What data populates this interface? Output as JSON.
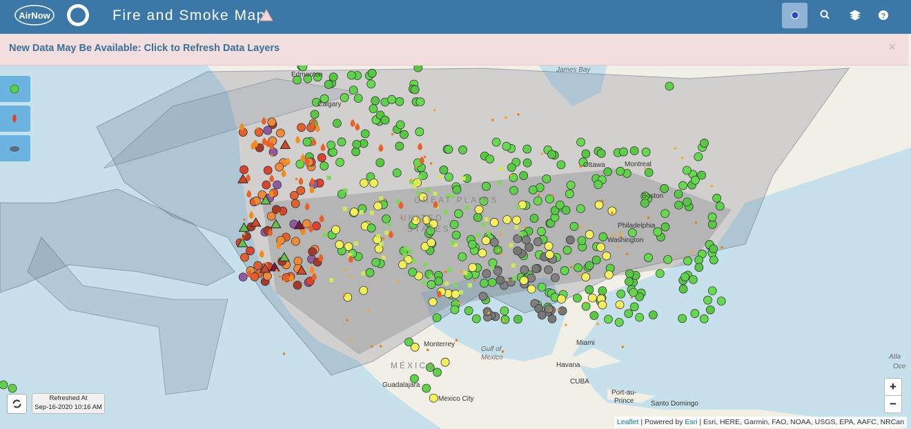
{
  "header": {
    "logo": "AirNow",
    "title": "Fire and Smoke Map"
  },
  "banner": {
    "text": "New Data May Be Available: Click to Refresh Data Layers",
    "close": "×"
  },
  "refresh": {
    "label": "Refreshed At",
    "time": "Sep-16-2020 10:16 AM"
  },
  "zoom": {
    "in": "+",
    "out": "−"
  },
  "attribution": {
    "leaflet": "Leaflet",
    "powered": "| Powered by",
    "esri": "Esri",
    "sources": "| Esri, HERE, Garmin, FAO, NOAA, USGS, EPA, AAFC, NRCan"
  },
  "map": {
    "labels": [
      "Edmonton",
      "Calgary",
      "James Bay",
      "Ottawa",
      "Montreal",
      "Boston",
      "Philadelphia",
      "Washington",
      "GREAT PLAINS",
      "UNITED",
      "STATES",
      "Gulf of",
      "Mexico",
      "MÉXICO",
      "Monterrey",
      "Guadalajara",
      "Mexico City",
      "Miami",
      "Havana",
      "CUBA",
      "Port-au-",
      "Prince",
      "Santo Domingo",
      "Atla",
      "Oce"
    ]
  }
}
